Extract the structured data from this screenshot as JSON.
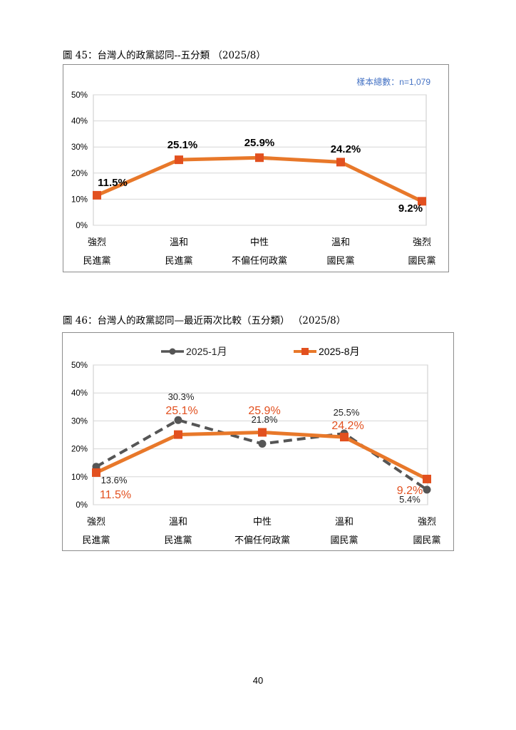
{
  "page": {
    "number": "40"
  },
  "figure45": {
    "caption": "圖 45：台灣人的政黨認同--五分類 （2025/8）",
    "sample_note": "樣本總數：n=1,079"
  },
  "figure46": {
    "caption": "圖 46：台灣人的政黨認同—最近兩次比較（五分類） （2025/8）"
  },
  "colors": {
    "orange": "#e8782a",
    "marker_orange": "#e2501f",
    "dark_gray": "#555555",
    "label_orange": "#e2501f",
    "note_blue": "#4472c4"
  },
  "chart_data": [
    {
      "type": "line",
      "categories": [
        [
          "強烈",
          "民進黨"
        ],
        [
          "溫和",
          "民進黨"
        ],
        [
          "中性",
          "不偏任何政黨"
        ],
        [
          "溫和",
          "國民黨"
        ],
        [
          "強烈",
          "國民黨"
        ]
      ],
      "series": [
        {
          "values": [
            11.5,
            25.1,
            25.9,
            24.2,
            9.2
          ],
          "labels": [
            "11.5%",
            "25.1%",
            "25.9%",
            "24.2%",
            "9.2%"
          ]
        }
      ],
      "yticks": [
        "0%",
        "10%",
        "20%",
        "30%",
        "40%",
        "50%"
      ],
      "ylim": [
        0,
        50
      ],
      "grid": true,
      "note": "樣本總數：n=1,079"
    },
    {
      "type": "line",
      "categories": [
        [
          "強烈",
          "民進黨"
        ],
        [
          "溫和",
          "民進黨"
        ],
        [
          "中性",
          "不偏任何政黨"
        ],
        [
          "溫和",
          "國民黨"
        ],
        [
          "強烈",
          "國民黨"
        ]
      ],
      "series": [
        {
          "name": "2025-1月",
          "values": [
            13.6,
            30.3,
            21.8,
            25.5,
            5.4
          ],
          "labels": [
            "13.6%",
            "30.3%",
            "21.8%",
            "25.5%",
            "5.4%"
          ],
          "style": "dashed"
        },
        {
          "name": "2025-8月",
          "values": [
            11.5,
            25.1,
            25.9,
            24.2,
            9.2
          ],
          "labels": [
            "11.5%",
            "25.1%",
            "25.9%",
            "24.2%",
            "9.2%"
          ],
          "style": "solid"
        }
      ],
      "yticks": [
        "0%",
        "10%",
        "20%",
        "30%",
        "40%",
        "50%"
      ],
      "ylim": [
        0,
        50
      ],
      "grid": true,
      "legend": "top-center"
    }
  ]
}
